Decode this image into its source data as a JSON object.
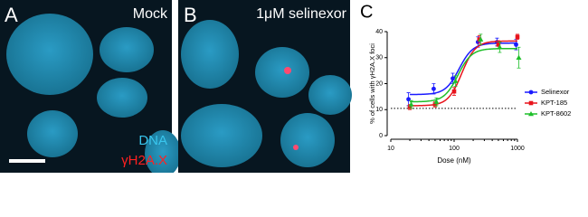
{
  "panels": {
    "a": {
      "letter": "A",
      "label": "Mock",
      "legend_dna": "DNA",
      "legend_foci": "γH2A.X"
    },
    "b": {
      "letter": "B",
      "label": "1μM selinexor"
    }
  },
  "chart_data": {
    "type": "line",
    "letter": "C",
    "x_label": "Dose (nM)",
    "y_label": "% of cells with γH2A.X foci",
    "x": [
      20,
      50,
      100,
      250,
      500,
      1000
    ],
    "xlim": [
      10,
      1000
    ],
    "xticks": [
      10,
      100,
      1000
    ],
    "xlog": true,
    "ylim": [
      0,
      40
    ],
    "yticks": [
      0,
      10,
      20,
      30,
      40
    ],
    "reference_line": 10.5,
    "legend": "right",
    "series": [
      {
        "name": "Selinexor",
        "color": "#1a1aff",
        "marker": "circle",
        "values": [
          14,
          18,
          22,
          36,
          36,
          35
        ],
        "errors": [
          2.5,
          2,
          2,
          2,
          1.5,
          2
        ],
        "fit": {
          "bottom": 15.8,
          "top": 35.6,
          "ec50": 120,
          "hill": 4
        }
      },
      {
        "name": "KPT-185",
        "color": "#e8141c",
        "marker": "square",
        "values": [
          11,
          12,
          17,
          37,
          35,
          38
        ],
        "errors": [
          1,
          1,
          1.5,
          1.5,
          1.5,
          1
        ],
        "fit": {
          "bottom": 11.5,
          "top": 36.4,
          "ec50": 132,
          "hill": 4
        }
      },
      {
        "name": "KPT-8602",
        "color": "#1fbf2a",
        "marker": "triangle",
        "values": [
          12,
          13,
          21,
          37,
          34,
          30
        ],
        "errors": [
          1.5,
          1.5,
          2,
          2,
          2,
          4
        ],
        "fit": {
          "bottom": 13,
          "top": 33.5,
          "ec50": 115,
          "hill": 4
        }
      }
    ]
  }
}
